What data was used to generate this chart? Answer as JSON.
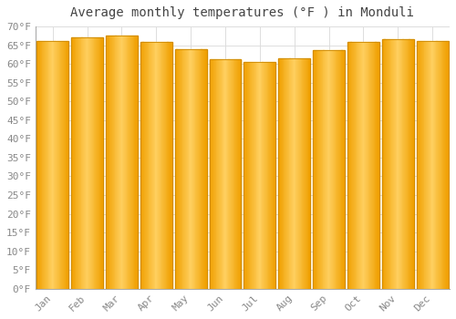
{
  "title": "Average monthly temperatures (°F ) in Monduli",
  "months": [
    "Jan",
    "Feb",
    "Mar",
    "Apr",
    "May",
    "Jun",
    "Jul",
    "Aug",
    "Sep",
    "Oct",
    "Nov",
    "Dec"
  ],
  "values": [
    66.2,
    67.0,
    67.5,
    65.8,
    63.9,
    61.2,
    60.6,
    61.5,
    63.7,
    65.8,
    66.5,
    66.0
  ],
  "bar_color_left": "#F0A000",
  "bar_color_center": "#FFD060",
  "bar_color_right": "#F0A000",
  "bar_edge_color": "#CC8800",
  "background_color": "#FFFFFF",
  "grid_color": "#DDDDDD",
  "ylim": [
    0,
    70
  ],
  "ytick_step": 5,
  "title_fontsize": 10,
  "tick_fontsize": 8,
  "tick_color": "#888888",
  "spine_color": "#AAAAAA",
  "bar_width": 0.92
}
